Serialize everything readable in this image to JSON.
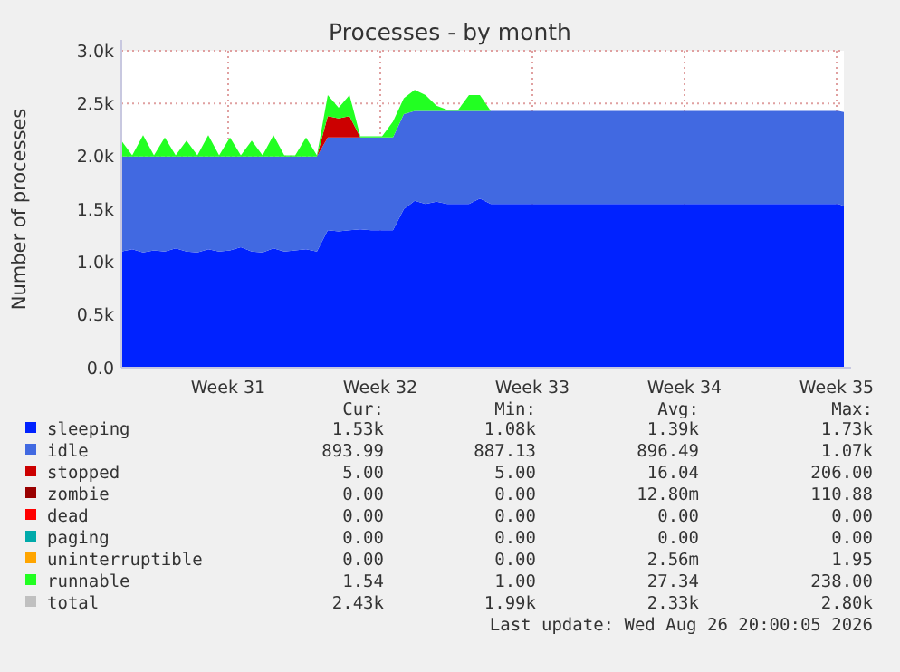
{
  "chart_data": {
    "type": "area",
    "stacked": true,
    "title": "Processes - by month",
    "ylabel": "Number of processes",
    "grid": true,
    "legend": "bottom",
    "xlim": [
      "2026-07-22T02:00",
      "2026-08-24T08:00"
    ],
    "xticks": [
      {
        "value": "2026-07-27",
        "label": "Week 31"
      },
      {
        "value": "2026-08-03",
        "label": "Week 32"
      },
      {
        "value": "2026-08-10",
        "label": "Week 33"
      },
      {
        "value": "2026-08-17",
        "label": "Week 34"
      },
      {
        "value": "2026-08-24",
        "label": "Week 35"
      }
    ],
    "ylim": [
      0,
      3000
    ],
    "yticks": [
      {
        "value": 0,
        "label": "0.0"
      },
      {
        "value": 500,
        "label": "0.5k"
      },
      {
        "value": 1000,
        "label": "1.0k"
      },
      {
        "value": 1500,
        "label": "1.5k"
      },
      {
        "value": 2000,
        "label": "2.0k"
      },
      {
        "value": 2500,
        "label": "2.5k"
      },
      {
        "value": 3000,
        "label": "3.0k"
      }
    ],
    "x": [
      "2026-07-22T02:00",
      "2026-07-22T14:00",
      "2026-07-23T02:00",
      "2026-07-23T14:00",
      "2026-07-24T02:00",
      "2026-07-24T14:00",
      "2026-07-25T02:00",
      "2026-07-25T14:00",
      "2026-07-26T02:00",
      "2026-07-26T14:00",
      "2026-07-27T02:00",
      "2026-07-27T14:00",
      "2026-07-28T02:00",
      "2026-07-28T14:00",
      "2026-07-29T02:00",
      "2026-07-29T14:00",
      "2026-07-30T02:00",
      "2026-07-30T14:00",
      "2026-07-31T02:00",
      "2026-07-31T14:00",
      "2026-08-01T02:00",
      "2026-08-01T14:00",
      "2026-08-02T02:00",
      "2026-08-02T14:00",
      "2026-08-03T02:00",
      "2026-08-03T14:00",
      "2026-08-04T02:00",
      "2026-08-04T14:00",
      "2026-08-05T02:00",
      "2026-08-05T14:00",
      "2026-08-06T02:00",
      "2026-08-06T14:00",
      "2026-08-07T02:00",
      "2026-08-07T14:00",
      "2026-08-08T02:00",
      "2026-08-08T14:00",
      "2026-08-09T02:00",
      "2026-08-09T14:00",
      "2026-08-10T02:00",
      "2026-08-10T14:00",
      "2026-08-11T02:00",
      "2026-08-11T14:00",
      "2026-08-12T02:00",
      "2026-08-12T14:00",
      "2026-08-13T02:00",
      "2026-08-13T14:00",
      "2026-08-14T02:00",
      "2026-08-14T14:00",
      "2026-08-15T02:00",
      "2026-08-15T14:00",
      "2026-08-16T02:00",
      "2026-08-16T14:00",
      "2026-08-17T02:00",
      "2026-08-17T14:00",
      "2026-08-18T02:00",
      "2026-08-18T14:00",
      "2026-08-19T02:00",
      "2026-08-19T14:00",
      "2026-08-20T02:00",
      "2026-08-20T14:00",
      "2026-08-21T02:00",
      "2026-08-21T14:00",
      "2026-08-22T02:00",
      "2026-08-22T14:00",
      "2026-08-23T02:00",
      "2026-08-23T14:00",
      "2026-08-24T02:00",
      "2026-08-24T08:00"
    ],
    "series": [
      {
        "name": "sleeping",
        "color": "#0022ff",
        "values": [
          1100,
          1120,
          1090,
          1110,
          1100,
          1130,
          1100,
          1090,
          1120,
          1100,
          1110,
          1140,
          1100,
          1090,
          1130,
          1100,
          1110,
          1120,
          1100,
          1300,
          1290,
          1300,
          1310,
          1300,
          1300,
          1300,
          1500,
          1580,
          1550,
          1570,
          1550,
          1550,
          1550,
          1600,
          1550,
          1550,
          1550,
          1550,
          1550,
          1550,
          1550,
          1550,
          1550,
          1550,
          1550,
          1550,
          1550,
          1550,
          1550,
          1550,
          1550,
          1550,
          1550,
          1550,
          1550,
          1550,
          1550,
          1550,
          1550,
          1550,
          1550,
          1550,
          1550,
          1550,
          1550,
          1550,
          1550,
          1530
        ]
      },
      {
        "name": "idle",
        "color": "#4169e1",
        "values": [
          900,
          880,
          910,
          890,
          900,
          870,
          900,
          910,
          880,
          900,
          890,
          860,
          900,
          910,
          870,
          900,
          890,
          880,
          900,
          880,
          890,
          880,
          870,
          880,
          880,
          880,
          900,
          850,
          880,
          860,
          880,
          880,
          880,
          830,
          880,
          880,
          880,
          880,
          880,
          880,
          880,
          880,
          880,
          880,
          880,
          880,
          880,
          880,
          880,
          880,
          880,
          880,
          880,
          880,
          880,
          880,
          880,
          880,
          880,
          880,
          880,
          880,
          880,
          880,
          880,
          880,
          880,
          890
        ]
      },
      {
        "name": "stopped",
        "color": "#cc0000",
        "values": [
          0,
          0,
          0,
          0,
          0,
          0,
          0,
          0,
          0,
          0,
          0,
          0,
          0,
          0,
          0,
          0,
          0,
          0,
          0,
          200,
          180,
          200,
          0,
          0,
          0,
          0,
          0,
          0,
          0,
          0,
          0,
          0,
          0,
          0,
          0,
          0,
          0,
          0,
          0,
          0,
          0,
          0,
          0,
          0,
          0,
          0,
          0,
          0,
          0,
          0,
          0,
          0,
          0,
          0,
          0,
          0,
          0,
          0,
          0,
          0,
          0,
          0,
          0,
          0,
          0,
          0,
          0,
          0
        ]
      },
      {
        "name": "zombie",
        "color": "#990000",
        "values": [
          null,
          null,
          null,
          null,
          null,
          null,
          null,
          null,
          null,
          null,
          null,
          null,
          null,
          null,
          null,
          null,
          null,
          null,
          null,
          null,
          null,
          null,
          null,
          null,
          null,
          null,
          null,
          null,
          null,
          null,
          null,
          null,
          null,
          null,
          null,
          null,
          null,
          null,
          null,
          null,
          null,
          null,
          null,
          null,
          null,
          null,
          null,
          null,
          null,
          null,
          null,
          null,
          null,
          null,
          null,
          null,
          null,
          null,
          null,
          null,
          null,
          null,
          null,
          null,
          null,
          null,
          null,
          null
        ]
      },
      {
        "name": "dead",
        "color": "#ff0000",
        "values": [
          null,
          null,
          null,
          null,
          null,
          null,
          null,
          null,
          null,
          null,
          null,
          null,
          null,
          null,
          null,
          null,
          null,
          null,
          null,
          null,
          null,
          null,
          null,
          null,
          null,
          null,
          null,
          null,
          null,
          null,
          null,
          null,
          null,
          null,
          null,
          null,
          null,
          null,
          null,
          null,
          null,
          null,
          null,
          null,
          null,
          null,
          null,
          null,
          null,
          null,
          null,
          null,
          null,
          null,
          null,
          null,
          null,
          null,
          null,
          null,
          null,
          null,
          null,
          null,
          null,
          null,
          null,
          null
        ]
      },
      {
        "name": "paging",
        "color": "#00aaaa",
        "values": [
          null,
          null,
          null,
          null,
          null,
          null,
          null,
          null,
          null,
          null,
          null,
          null,
          null,
          null,
          null,
          null,
          null,
          null,
          null,
          null,
          null,
          null,
          null,
          null,
          null,
          null,
          null,
          null,
          null,
          null,
          null,
          null,
          null,
          null,
          null,
          null,
          null,
          null,
          null,
          null,
          null,
          null,
          null,
          null,
          null,
          null,
          null,
          null,
          null,
          null,
          null,
          null,
          null,
          null,
          null,
          null,
          null,
          null,
          null,
          null,
          null,
          null,
          null,
          null,
          null,
          null,
          null,
          null
        ]
      },
      {
        "name": "uninterruptible",
        "color": "#ffa500",
        "values": [
          null,
          null,
          null,
          null,
          null,
          null,
          null,
          null,
          null,
          null,
          null,
          null,
          null,
          null,
          null,
          null,
          null,
          null,
          null,
          null,
          null,
          null,
          null,
          null,
          null,
          null,
          null,
          null,
          null,
          null,
          null,
          null,
          null,
          null,
          null,
          null,
          null,
          null,
          null,
          null,
          null,
          null,
          null,
          null,
          null,
          null,
          null,
          null,
          null,
          null,
          null,
          null,
          null,
          null,
          null,
          null,
          null,
          null,
          null,
          null,
          null,
          null,
          null,
          null,
          null,
          null,
          null,
          null
        ]
      },
      {
        "name": "runnable",
        "color": "#22ff22",
        "values": [
          150,
          10,
          200,
          10,
          180,
          10,
          150,
          10,
          200,
          10,
          180,
          10,
          150,
          10,
          200,
          10,
          10,
          180,
          10,
          200,
          100,
          200,
          10,
          10,
          10,
          150,
          150,
          200,
          150,
          50,
          10,
          10,
          150,
          150,
          0,
          0,
          0,
          0,
          0,
          0,
          0,
          0,
          0,
          0,
          0,
          0,
          0,
          0,
          0,
          0,
          0,
          0,
          0,
          0,
          0,
          0,
          0,
          0,
          0,
          0,
          0,
          0,
          0,
          0,
          0,
          0,
          0,
          0
        ]
      },
      {
        "name": "total",
        "type": "line",
        "color": "#c0c0c0",
        "values": [
          null,
          null,
          null,
          null,
          null,
          null,
          null,
          null,
          null,
          null,
          null,
          null,
          null,
          null,
          null,
          null,
          null,
          null,
          null,
          null,
          null,
          null,
          null,
          null,
          null,
          null,
          null,
          null,
          null,
          null,
          null,
          null,
          null,
          null,
          null,
          null,
          null,
          null,
          null,
          null,
          null,
          null,
          null,
          null,
          null,
          null,
          null,
          null,
          null,
          null,
          null,
          null,
          null,
          null,
          null,
          null,
          null,
          null,
          null,
          null,
          null,
          null,
          null,
          null,
          null,
          null,
          null,
          null
        ]
      }
    ],
    "annotations": [
      "Cur:",
      "Min:",
      "Avg:",
      "Max:",
      "1.53k",
      "1.08k",
      "1.39k",
      "1.73k",
      "893.99",
      "887.13",
      "896.49",
      "1.07k",
      "5.00",
      "5.00",
      "16.04",
      "206.00",
      "0.00",
      "0.00",
      "12.80m",
      "110.88",
      "0.00",
      "0.00",
      "0.00",
      "0.00",
      "0.00",
      "0.00",
      "0.00",
      "0.00",
      "0.00",
      "0.00",
      "2.56m",
      "1.95",
      "1.54",
      "1.00",
      "27.34",
      "238.00",
      "2.43k",
      "1.99k",
      "2.33k",
      "2.80k",
      "Last update: Wed Aug 26 20:00:05 2026"
    ]
  }
}
